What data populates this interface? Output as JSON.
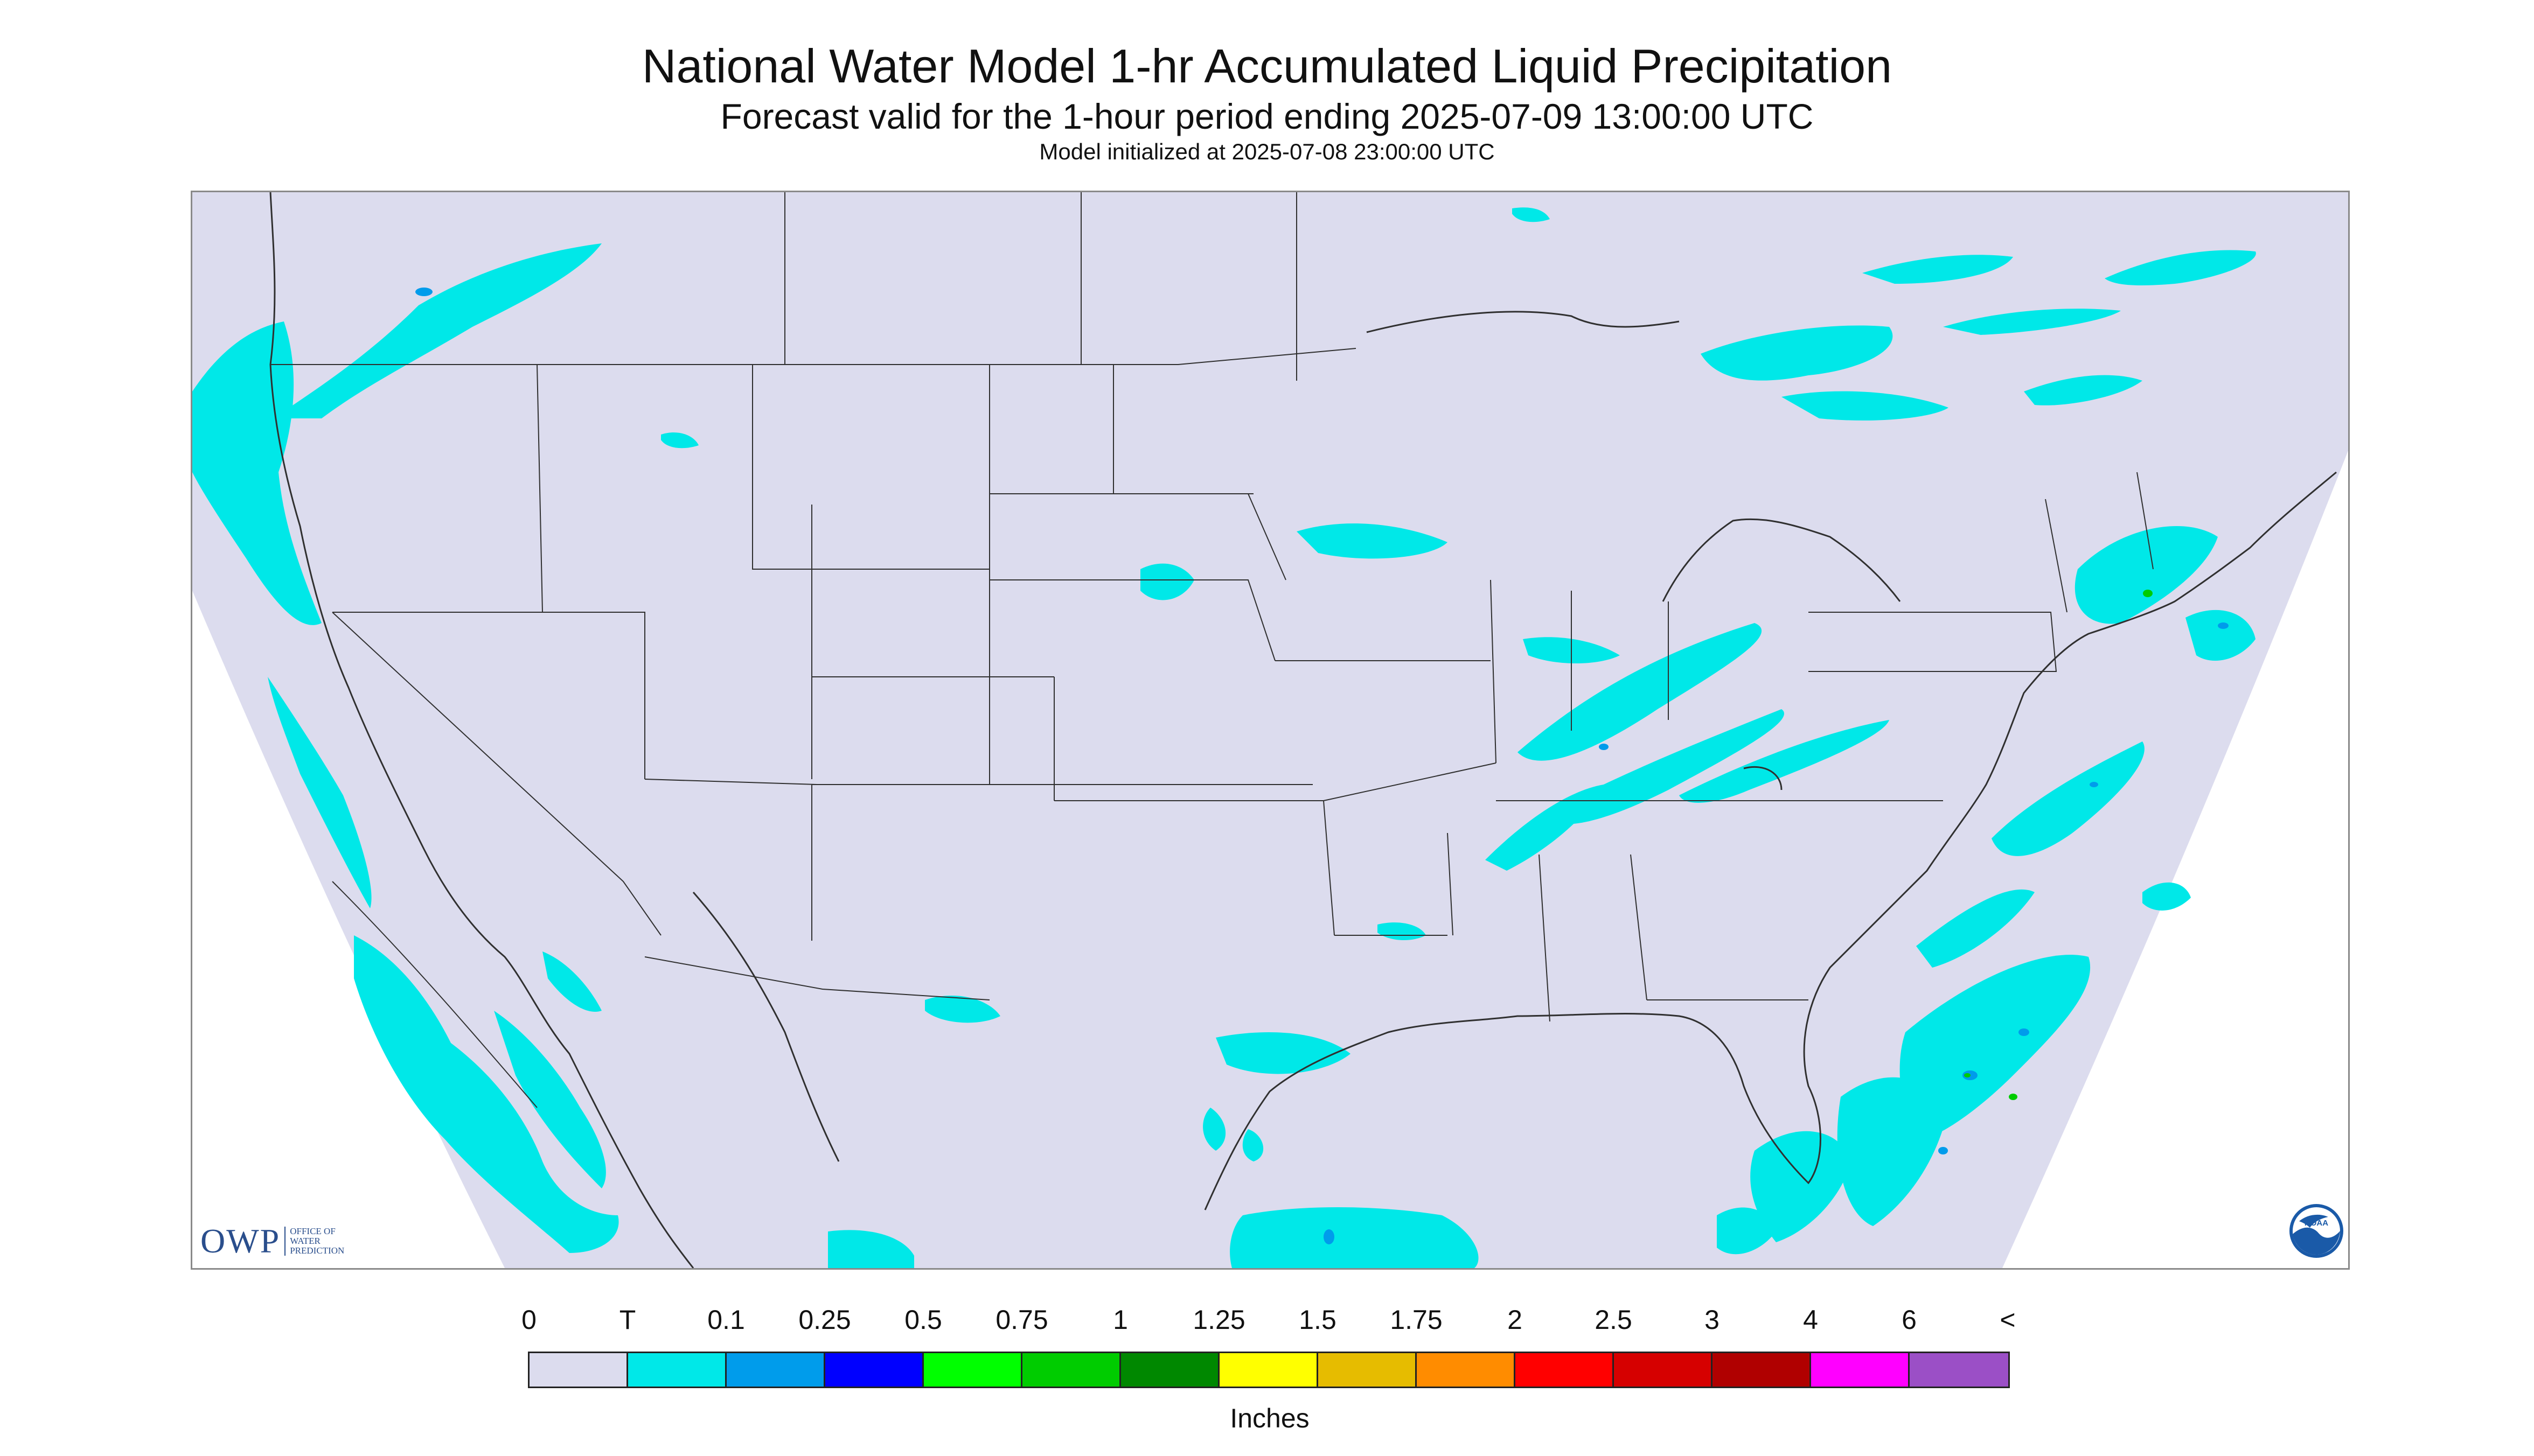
{
  "header": {
    "title": "National Water Model 1-hr Accumulated Liquid Precipitation",
    "subtitle": "Forecast valid for the 1-hour period ending 2025-07-09 13:00:00 UTC",
    "init": "Model initialized at 2025-07-08 23:00:00 UTC"
  },
  "map": {
    "background_color": "#dcdcee",
    "outside_domain_color": "#ffffff",
    "boundary_color": "#303030",
    "light_precip_color": "#00e8e8",
    "precip_areas": [
      "Pacific Northwest coast",
      "Northern Great Lakes / Ontario",
      "Southern Quebec",
      "Ohio Valley",
      "Southern New England",
      "Atlantic off the Southeast coast",
      "Western Gulf of Mexico",
      "Pacific off Baja California"
    ]
  },
  "logos": {
    "owp_text": "OWP",
    "owp_sub": [
      "OFFICE OF",
      "WATER",
      "PREDICTION"
    ],
    "noaa_text": "NOAA",
    "noaa_icon": "noaa-logo-icon"
  },
  "legend": {
    "tick_labels": [
      "0",
      "T",
      "0.1",
      "0.25",
      "0.5",
      "0.75",
      "1",
      "1.25",
      "1.5",
      "1.75",
      "2",
      "2.5",
      "3",
      "4",
      "6",
      "<"
    ],
    "colors": [
      "#dcdcee",
      "#00e8e8",
      "#009ceb",
      "#0000ff",
      "#00ff00",
      "#00cc00",
      "#008800",
      "#ffff00",
      "#e6bc00",
      "#ff8c00",
      "#ff0000",
      "#d60000",
      "#b00000",
      "#ff00ff",
      "#9b4fc6"
    ],
    "units": "Inches"
  }
}
